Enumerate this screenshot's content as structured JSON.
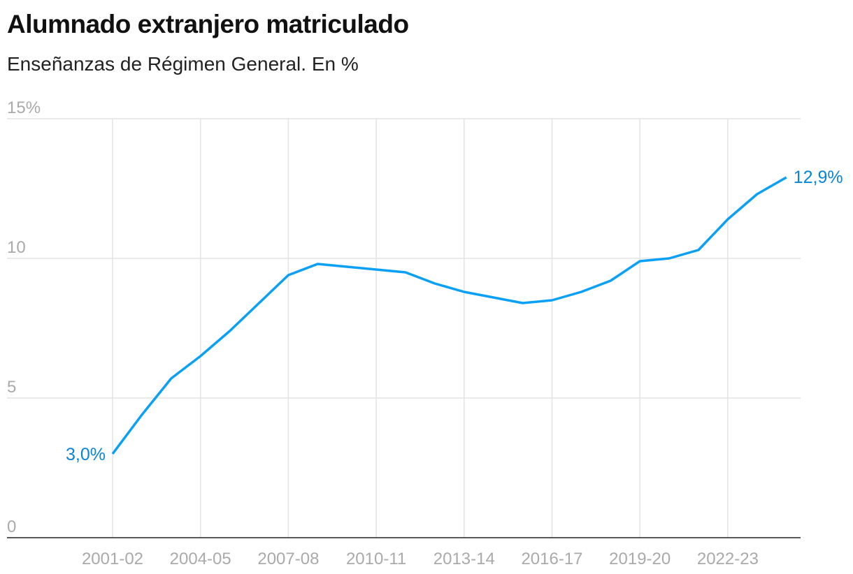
{
  "title": "Alumnado extranjero matriculado",
  "subtitle": "Enseñanzas de Régimen General. En %",
  "chart_data": {
    "type": "line",
    "title": "Alumnado extranjero matriculado",
    "subtitle": "Enseñanzas de Régimen General. En %",
    "xlabel": "",
    "ylabel": "",
    "ylim": [
      0,
      15
    ],
    "yticks": [
      "0",
      "5",
      "10",
      "15%"
    ],
    "ytick_values": [
      0,
      5,
      10,
      15
    ],
    "xtick_labels": [
      "2001-02",
      "2004-05",
      "2007-08",
      "2010-11",
      "2013-14",
      "2016-17",
      "2019-20",
      "2022-23"
    ],
    "grid": true,
    "color": "#0aa0f5",
    "x": [
      "2001-02",
      "2002-03",
      "2003-04",
      "2004-05",
      "2005-06",
      "2006-07",
      "2007-08",
      "2008-09",
      "2009-10",
      "2010-11",
      "2011-12",
      "2012-13",
      "2013-14",
      "2014-15",
      "2015-16",
      "2016-17",
      "2017-18",
      "2018-19",
      "2019-20",
      "2020-21",
      "2021-22",
      "2022-23",
      "2023-24",
      "2024-25"
    ],
    "series": [
      {
        "values": [
          3.0,
          4.4,
          5.7,
          6.5,
          7.4,
          8.4,
          9.4,
          9.8,
          9.7,
          9.6,
          9.5,
          9.1,
          8.8,
          8.6,
          8.4,
          8.5,
          8.8,
          9.2,
          9.9,
          10.0,
          10.3,
          11.4,
          12.3,
          12.9
        ]
      }
    ],
    "annotations": {
      "first": "3,0%",
      "last": "12,9%"
    }
  }
}
